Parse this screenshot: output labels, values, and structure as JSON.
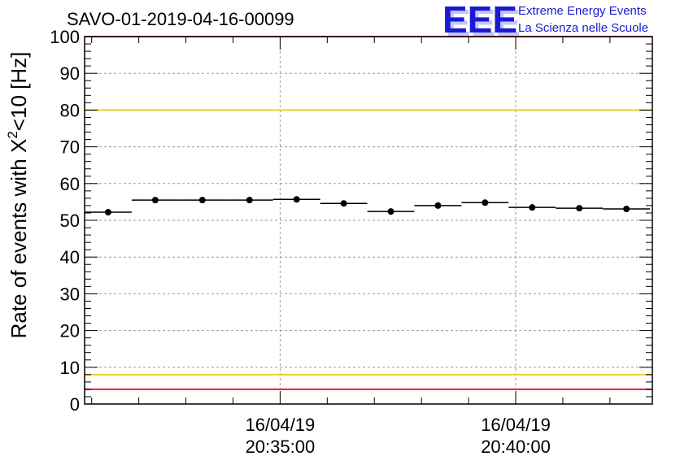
{
  "chart_data": {
    "type": "scatter",
    "title": "SAVO-01-2019-04-16-00099",
    "ylabel_prefix": "Rate of events with X",
    "ylabel_sup": "2",
    "ylabel_suffix": "<10 [Hz]",
    "xlabel": "",
    "ylim": [
      0,
      100
    ],
    "y_ticks": [
      0,
      10,
      20,
      30,
      40,
      50,
      60,
      70,
      80,
      90,
      100
    ],
    "x_ticks": [
      {
        "date": "16/04/19",
        "time": "20:35:00",
        "minute": 5
      },
      {
        "date": "16/04/19",
        "time": "20:40:00",
        "minute": 10
      }
    ],
    "xlim_minutes": [
      0.85,
      12.9
    ],
    "points": [
      {
        "x": 1.35,
        "y": 52.2,
        "xerr": 0.5
      },
      {
        "x": 2.35,
        "y": 55.5,
        "xerr": 0.5
      },
      {
        "x": 3.35,
        "y": 55.5,
        "xerr": 0.5
      },
      {
        "x": 4.35,
        "y": 55.5,
        "xerr": 0.5
      },
      {
        "x": 5.35,
        "y": 55.7,
        "xerr": 0.5
      },
      {
        "x": 6.35,
        "y": 54.6,
        "xerr": 0.5
      },
      {
        "x": 7.35,
        "y": 52.4,
        "xerr": 0.5
      },
      {
        "x": 8.35,
        "y": 54.0,
        "xerr": 0.5
      },
      {
        "x": 9.35,
        "y": 54.8,
        "xerr": 0.5
      },
      {
        "x": 10.35,
        "y": 53.5,
        "xerr": 0.5
      },
      {
        "x": 11.35,
        "y": 53.3,
        "xerr": 0.5
      },
      {
        "x": 12.35,
        "y": 53.1,
        "xerr": 0.5
      }
    ],
    "reference_lines": [
      {
        "y": 100,
        "color": "#e8202a"
      },
      {
        "y": 80,
        "color": "#f0d020"
      },
      {
        "y": 8,
        "color": "#f0d020"
      },
      {
        "y": 4,
        "color": "#e8202a"
      }
    ],
    "grid": true
  },
  "logo": {
    "mark": "EEE",
    "line1": "Extreme Energy Events",
    "line2": "La Scienza nelle Scuole"
  }
}
